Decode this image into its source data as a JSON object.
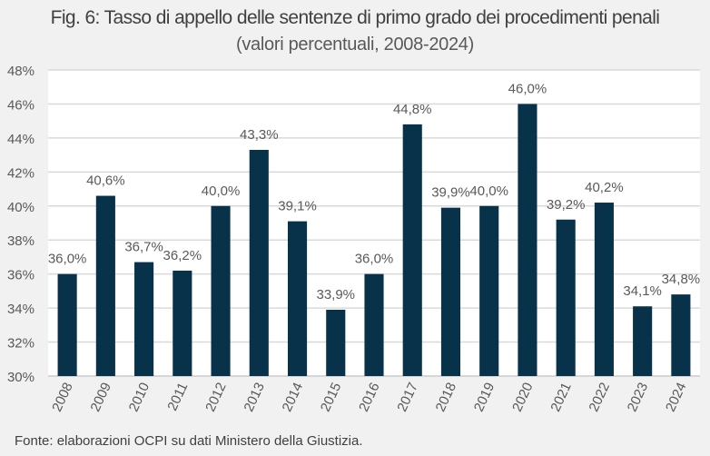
{
  "chart_data": {
    "type": "bar",
    "title": "Fig. 6: Tasso di appello delle sentenze di primo grado dei procedimenti penali",
    "subtitle": "(valori percentuali, 2008-2024)",
    "xlabel": "",
    "ylabel": "",
    "ylim": [
      30,
      48
    ],
    "yticks": [
      30,
      32,
      34,
      36,
      38,
      40,
      42,
      44,
      46,
      48
    ],
    "ytick_labels": [
      "30%",
      "32%",
      "34%",
      "36%",
      "38%",
      "40%",
      "42%",
      "44%",
      "46%",
      "48%"
    ],
    "grid": true,
    "legend": "none",
    "categories": [
      "2008",
      "2009",
      "2010",
      "2011",
      "2012",
      "2013",
      "2014",
      "2015",
      "2016",
      "2017",
      "2018",
      "2019",
      "2020",
      "2021",
      "2022",
      "2023",
      "2024"
    ],
    "values": [
      36.0,
      40.6,
      36.7,
      36.2,
      40.0,
      43.3,
      39.1,
      33.9,
      36.0,
      44.8,
      39.9,
      40.0,
      46.0,
      39.2,
      40.2,
      34.1,
      34.8
    ],
    "data_labels": [
      "36,0%",
      "40,6%",
      "36,7%",
      "36,2%",
      "40,0%",
      "43,3%",
      "39,1%",
      "33,9%",
      "36,0%",
      "44,8%",
      "39,9%",
      "40,0%",
      "46,0%",
      "39,2%",
      "40,2%",
      "34,1%",
      "34,8%"
    ],
    "colors": {
      "bar": "#08324a",
      "grid": "#d9d9d9",
      "plot_bg": "#ffffff",
      "text": "#595959"
    }
  },
  "source": "Fonte: elaborazioni OCPI su dati Ministero della Giustizia."
}
